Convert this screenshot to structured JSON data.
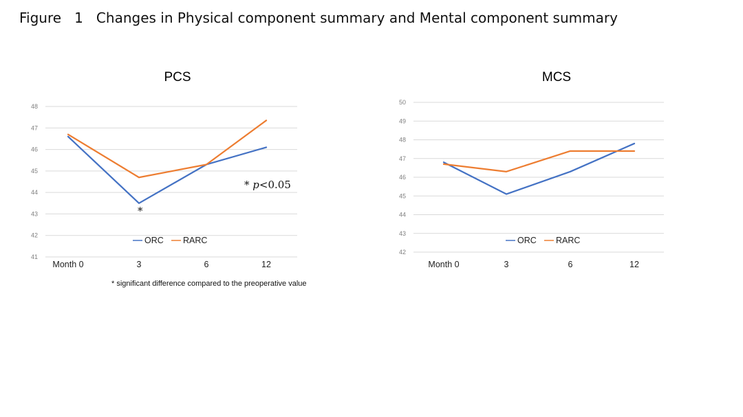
{
  "figure_title": "Figure   1   Changes in Physical component summary and Mental component summary",
  "significance_note": "* significant difference compared to the preoperative value",
  "pcs_annotation": {
    "star": "*",
    "p_label": "p",
    "p_value": "<0.05"
  },
  "pcs_point_marker": "*",
  "colors": {
    "ORC": "#4472c4",
    "RARC": "#ed7d31",
    "grid": "#d9d9d9"
  },
  "chart_data": [
    {
      "type": "line",
      "title": "PCS",
      "categories": [
        "Month 0",
        "3",
        "6",
        "12"
      ],
      "series": [
        {
          "name": "ORC",
          "values": [
            46.6,
            43.5,
            45.3,
            46.1
          ]
        },
        {
          "name": "RARC",
          "values": [
            46.7,
            44.7,
            45.3,
            47.35
          ]
        }
      ],
      "ylim": [
        41,
        48
      ],
      "yticks": [
        "41",
        "42",
        "43",
        "44",
        "45",
        "46",
        "47",
        "48"
      ],
      "xlabel": "",
      "ylabel": "",
      "grid": true,
      "legend": "bottom"
    },
    {
      "type": "line",
      "title": "MCS",
      "categories": [
        "Month 0",
        "3",
        "6",
        "12"
      ],
      "series": [
        {
          "name": "ORC",
          "values": [
            46.8,
            45.1,
            46.3,
            47.8
          ]
        },
        {
          "name": "RARC",
          "values": [
            46.7,
            46.3,
            47.4,
            47.4
          ]
        }
      ],
      "ylim": [
        42,
        50
      ],
      "yticks": [
        "42",
        "43",
        "44",
        "45",
        "46",
        "47",
        "48",
        "49",
        "50"
      ],
      "xlabel": "",
      "ylabel": "",
      "grid": true,
      "legend": "bottom"
    }
  ]
}
